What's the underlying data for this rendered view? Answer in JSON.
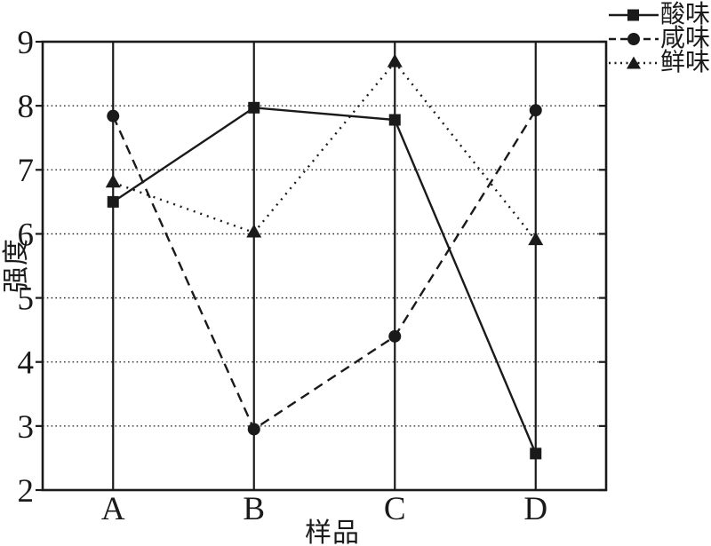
{
  "figure": {
    "background": "#ffffff",
    "foreground": "#1a1a1a"
  },
  "chart_data": {
    "type": "line",
    "title": "",
    "xlabel": "样品",
    "ylabel": "强度",
    "categories": [
      "A",
      "B",
      "C",
      "D"
    ],
    "ylim": [
      2,
      9
    ],
    "yticks": [
      2,
      3,
      4,
      5,
      6,
      7,
      8,
      9
    ],
    "grid": {
      "horizontal": "dotted gridlines at integer values 3-8",
      "vertical": "solid black line at each category"
    },
    "legend_position": "top-right outside plot",
    "series": [
      {
        "name": "酸味",
        "marker": "square",
        "line_style": "solid",
        "values": [
          6.5,
          7.97,
          7.78,
          2.57
        ]
      },
      {
        "name": "咸味",
        "marker": "circle",
        "line_style": "dashed",
        "values": [
          7.84,
          2.95,
          4.4,
          7.93
        ]
      },
      {
        "name": "鲜味",
        "marker": "triangle",
        "line_style": "dotted",
        "values": [
          6.8,
          6.02,
          8.68,
          5.9
        ]
      }
    ]
  }
}
